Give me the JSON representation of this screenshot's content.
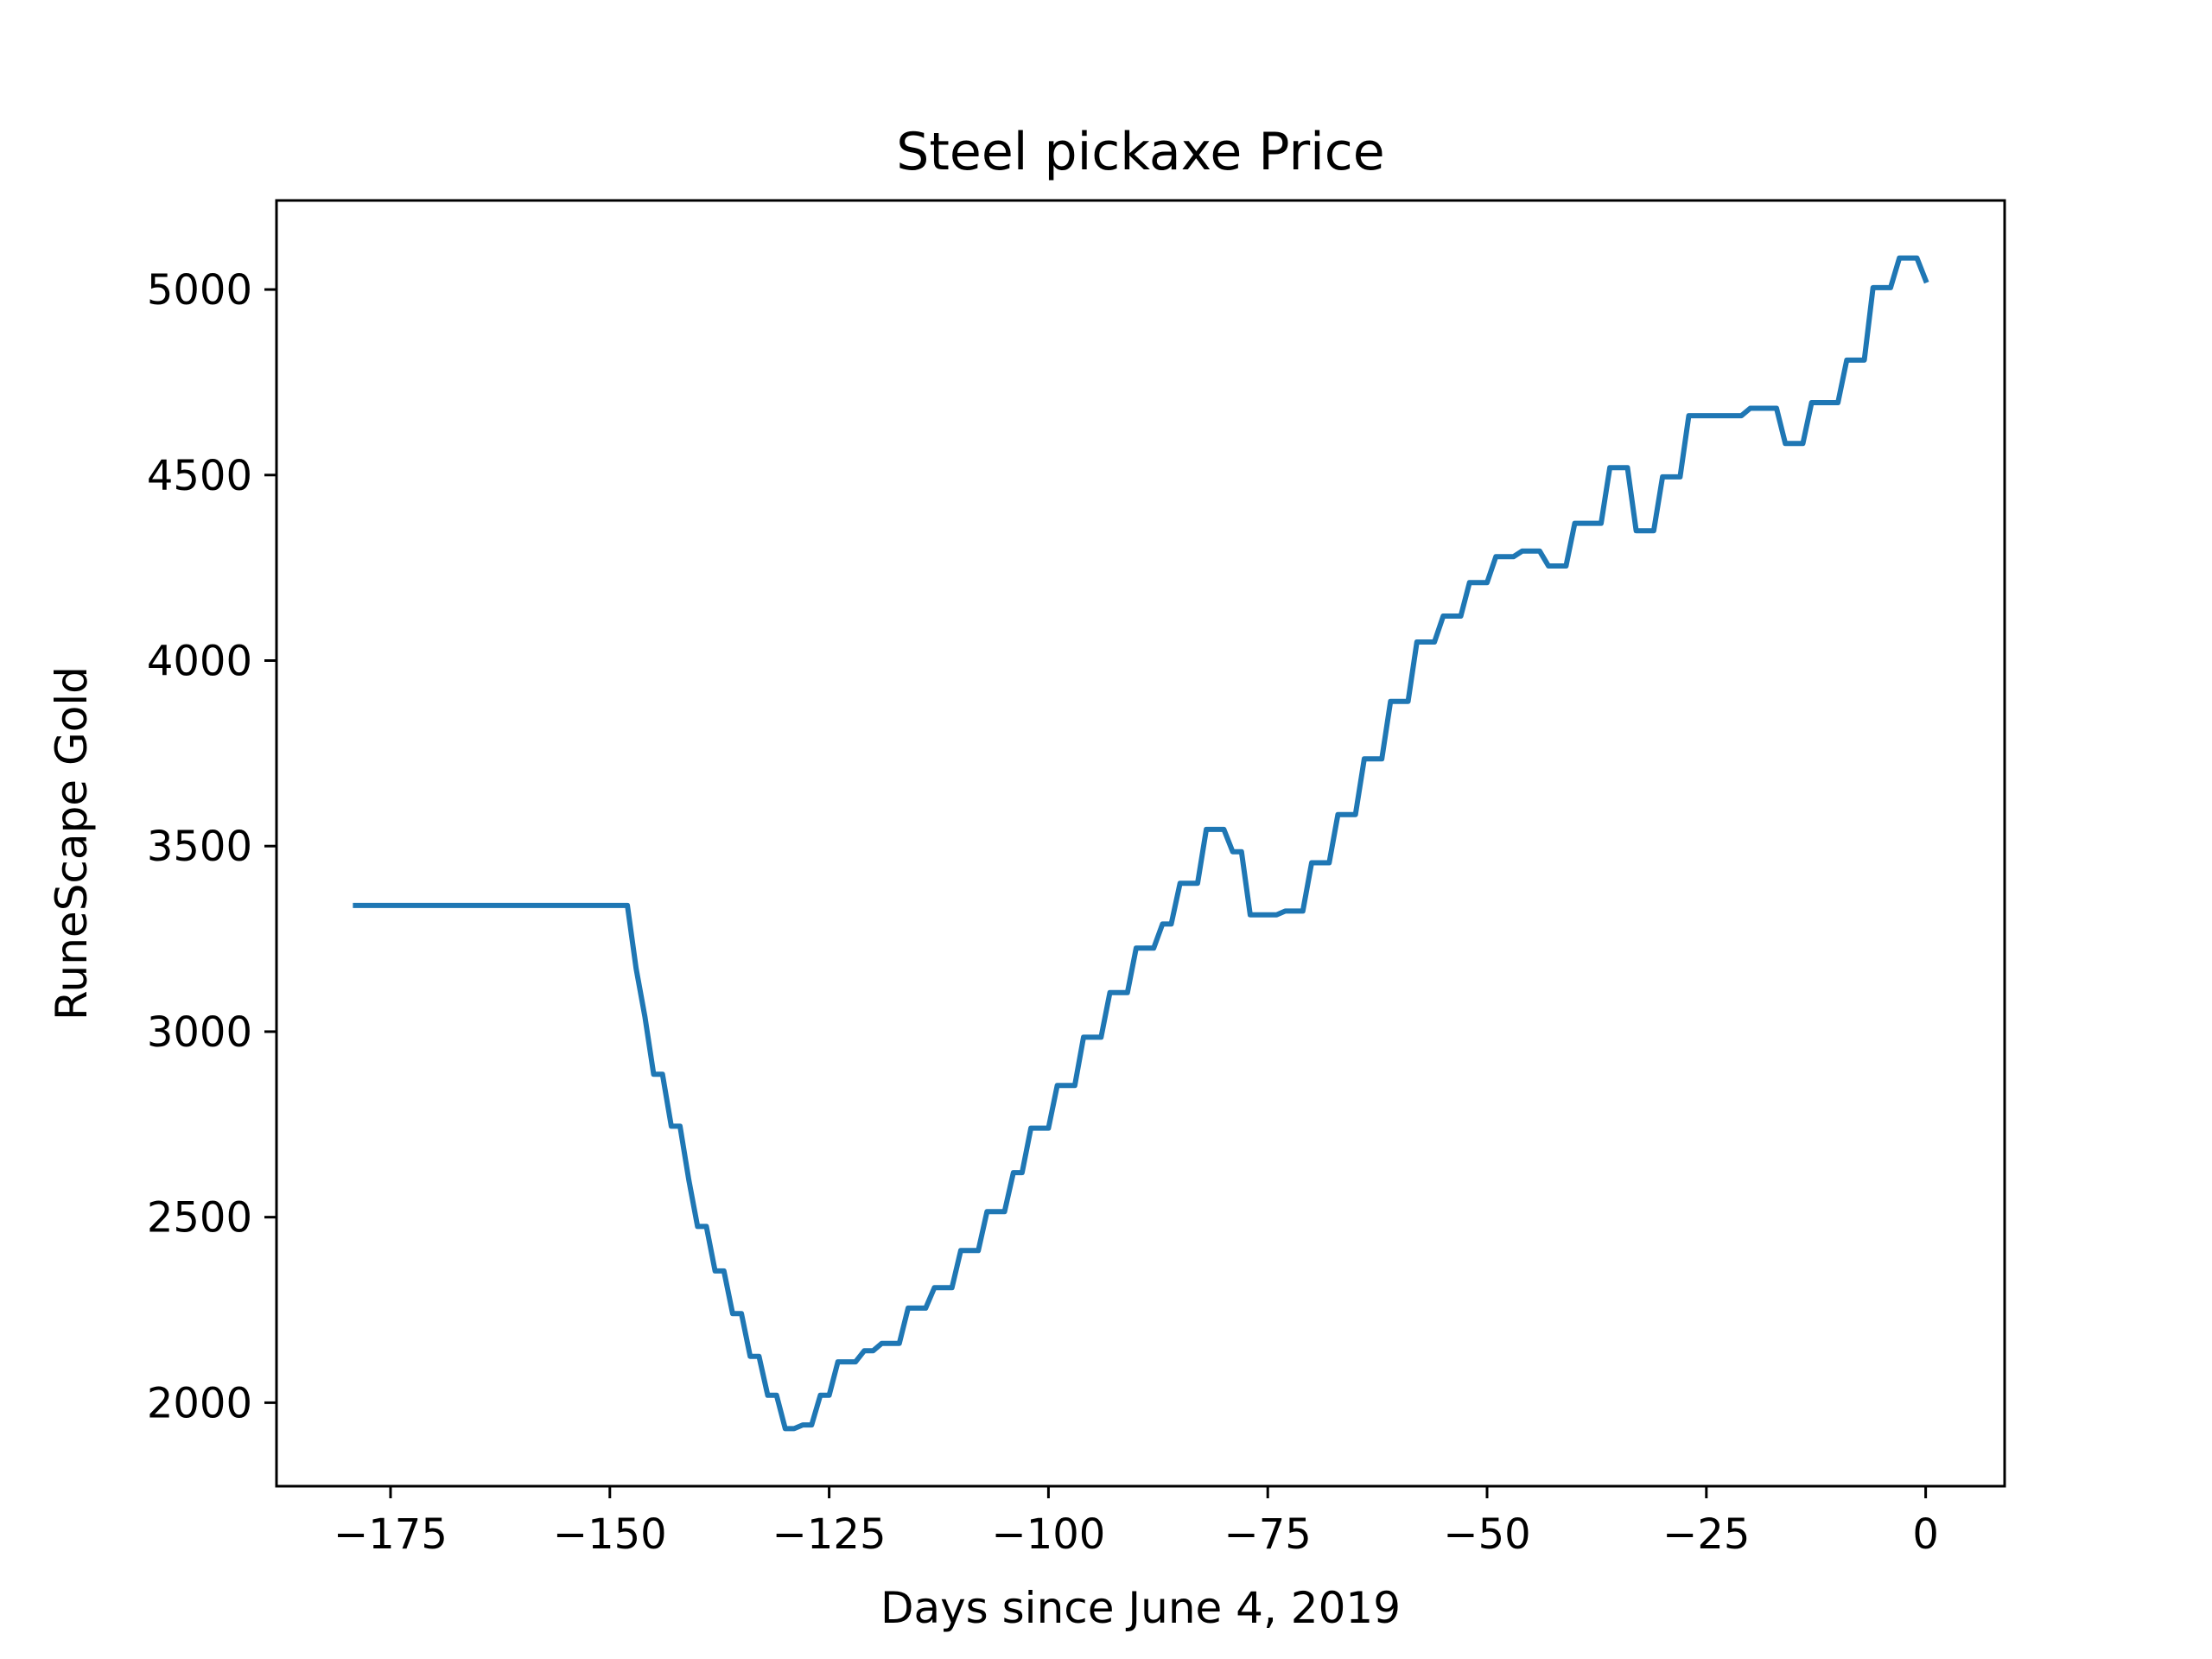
{
  "chart_data": {
    "type": "line",
    "title": "Steel pickaxe Price",
    "xlabel": "Days since June 4, 2019",
    "ylabel": "RuneScape Gold",
    "xlim": [
      -188,
      9
    ],
    "ylim": [
      1775,
      5240
    ],
    "xticks": [
      -175,
      -150,
      -125,
      -100,
      -75,
      -50,
      -25,
      0
    ],
    "xtick_labels": [
      "−175",
      "−150",
      "−125",
      "−100",
      "−75",
      "−50",
      "−25",
      "0"
    ],
    "yticks": [
      2000,
      2500,
      3000,
      3500,
      4000,
      4500,
      5000
    ],
    "ytick_labels": [
      "2000",
      "2500",
      "3000",
      "3500",
      "4000",
      "4500",
      "5000"
    ],
    "grid": false,
    "legend": "none",
    "series": [
      {
        "color": "#1f77b4",
        "x": [
          -179,
          -178,
          -177,
          -176,
          -175,
          -174,
          -173,
          -172,
          -171,
          -170,
          -169,
          -168,
          -167,
          -166,
          -165,
          -164,
          -163,
          -162,
          -161,
          -160,
          -159,
          -158,
          -157,
          -156,
          -155,
          -154,
          -153,
          -152,
          -151,
          -150,
          -149,
          -148,
          -147,
          -146,
          -145,
          -144,
          -143,
          -142,
          -141,
          -140,
          -139,
          -138,
          -137,
          -136,
          -135,
          -134,
          -133,
          -132,
          -131,
          -130,
          -129,
          -128,
          -127,
          -126,
          -125,
          -124,
          -123,
          -122,
          -121,
          -120,
          -119,
          -118,
          -117,
          -116,
          -115,
          -114,
          -113,
          -112,
          -111,
          -110,
          -109,
          -108,
          -107,
          -106,
          -105,
          -104,
          -103,
          -102,
          -101,
          -100,
          -99,
          -98,
          -97,
          -96,
          -95,
          -94,
          -93,
          -92,
          -91,
          -90,
          -89,
          -88,
          -87,
          -86,
          -85,
          -84,
          -83,
          -82,
          -81,
          -80,
          -79,
          -78,
          -77,
          -76,
          -75,
          -74,
          -73,
          -72,
          -71,
          -70,
          -69,
          -68,
          -67,
          -66,
          -65,
          -64,
          -63,
          -62,
          -61,
          -60,
          -59,
          -58,
          -57,
          -56,
          -55,
          -54,
          -53,
          -52,
          -51,
          -50,
          -49,
          -48,
          -47,
          -46,
          -45,
          -44,
          -43,
          -42,
          -41,
          -40,
          -39,
          -38,
          -37,
          -36,
          -35,
          -34,
          -33,
          -32,
          -31,
          -30,
          -29,
          -28,
          -27,
          -26,
          -25,
          -24,
          -23,
          -22,
          -21,
          -20,
          -19,
          -18,
          -17,
          -16,
          -15,
          -14,
          -13,
          -12,
          -11,
          -10,
          -9,
          -8,
          -7,
          -6,
          -5,
          -4,
          -3,
          -2,
          -1,
          0
        ],
        "y": [
          3340,
          3340,
          3340,
          3340,
          3340,
          3340,
          3340,
          3340,
          3340,
          3340,
          3340,
          3340,
          3340,
          3340,
          3340,
          3340,
          3340,
          3340,
          3340,
          3340,
          3340,
          3340,
          3340,
          3340,
          3340,
          3340,
          3340,
          3340,
          3340,
          3340,
          3340,
          3340,
          3170,
          3040,
          2885,
          2885,
          2745,
          2745,
          2600,
          2475,
          2475,
          2355,
          2355,
          2240,
          2240,
          2125,
          2125,
          2020,
          2020,
          1930,
          1930,
          1940,
          1940,
          2020,
          2020,
          2110,
          2110,
          2110,
          2140,
          2140,
          2160,
          2160,
          2160,
          2255,
          2255,
          2255,
          2310,
          2310,
          2310,
          2410,
          2410,
          2410,
          2515,
          2515,
          2515,
          2620,
          2620,
          2740,
          2740,
          2740,
          2855,
          2855,
          2855,
          2985,
          2985,
          2985,
          3105,
          3105,
          3105,
          3225,
          3225,
          3225,
          3290,
          3290,
          3400,
          3400,
          3400,
          3545,
          3545,
          3545,
          3485,
          3485,
          3315,
          3315,
          3315,
          3315,
          3325,
          3325,
          3325,
          3455,
          3455,
          3455,
          3585,
          3585,
          3585,
          3735,
          3735,
          3735,
          3890,
          3890,
          3890,
          4050,
          4050,
          4050,
          4120,
          4120,
          4120,
          4210,
          4210,
          4210,
          4280,
          4280,
          4280,
          4295,
          4295,
          4295,
          4255,
          4255,
          4255,
          4370,
          4370,
          4370,
          4370,
          4520,
          4520,
          4520,
          4350,
          4350,
          4350,
          4495,
          4495,
          4495,
          4660,
          4660,
          4660,
          4660,
          4660,
          4660,
          4660,
          4680,
          4680,
          4680,
          4680,
          4585,
          4585,
          4585,
          4695,
          4695,
          4695,
          4695,
          4810,
          4810,
          4810,
          5005,
          5005,
          5005,
          5085,
          5085,
          5085,
          5025
        ]
      }
    ]
  }
}
